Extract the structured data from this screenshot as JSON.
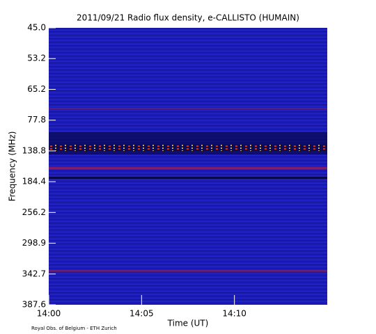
{
  "chart_data": {
    "type": "spectrogram",
    "title": "2011/09/21  Radio flux density, e-CALLISTO (HUMAIN)",
    "x_label": "Time (UT)",
    "y_label": "Frequency (MHz)",
    "credit": "Royal Obs. of Belgium - ETH Zurich",
    "xlim": [
      "14:00",
      "14:15"
    ],
    "xticks": [
      "14:00",
      "14:05",
      "14:10"
    ],
    "yticks": [
      {
        "value": 45,
        "label": "45.0"
      },
      53.2,
      65.2,
      77.8,
      138.8,
      184.4,
      256.2,
      298.9,
      342.7,
      387.6
    ],
    "color": "#1c1cb8"
  }
}
